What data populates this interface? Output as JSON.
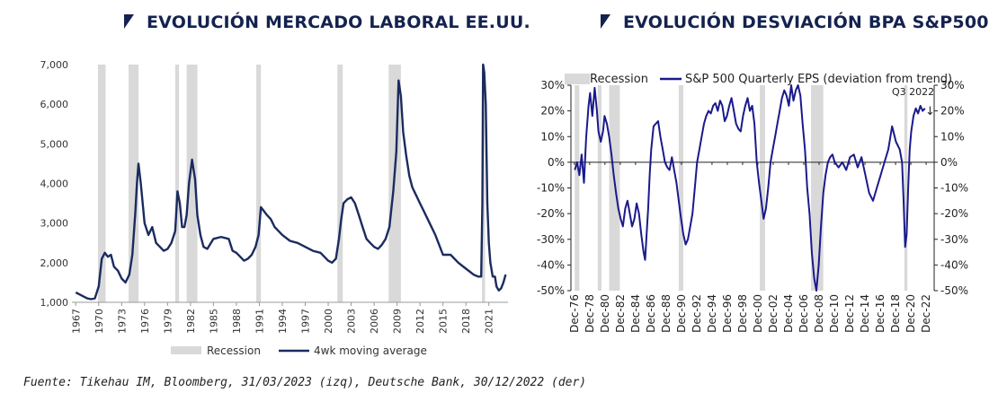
{
  "colors": {
    "line": "#1b2b5e",
    "line_right": "#1a1a8c",
    "recession": "#d9d9d9",
    "title": "#14224f"
  },
  "left": {
    "title": "EVOLUCIÓN MERCADO LABORAL EE.UU.",
    "legend_recession": "Recession",
    "legend_series": "4wk moving average"
  },
  "right": {
    "title": "EVOLUCIÓN DESVIACIÓN BPA S&P500",
    "legend_recession": "Recession",
    "legend_series": "S&P 500 Quarterly EPS (deviation from trend)",
    "annotation": "Q3 2022",
    "annotation_arrow": "↓"
  },
  "source": "Fuente: Tikehau IM, Bloomberg, 31/03/2023 (izq), Deutsche Bank, 30/12/2022 (der)",
  "chart_data": [
    {
      "type": "line",
      "title": "EVOLUCIÓN MERCADO LABORAL EE.UU.",
      "xlabel": "",
      "ylabel": "",
      "xlim": [
        1966.5,
        2023.5
      ],
      "ylim": [
        1000,
        7000
      ],
      "y_ticks": [
        1000,
        2000,
        3000,
        4000,
        5000,
        6000,
        7000
      ],
      "y_tick_labels": [
        "1,000",
        "2,000",
        "3,000",
        "4,000",
        "5,000",
        "6,000",
        "7,000"
      ],
      "x_ticks": [
        1967,
        1970,
        1973,
        1976,
        1979,
        1982,
        1985,
        1988,
        1991,
        1994,
        1997,
        2000,
        2003,
        2006,
        2009,
        2012,
        2015,
        2018,
        2021
      ],
      "recessions": [
        [
          1969.9,
          1970.9
        ],
        [
          1973.9,
          1975.2
        ],
        [
          1980.0,
          1980.5
        ],
        [
          1981.5,
          1982.9
        ],
        [
          1990.6,
          1991.2
        ],
        [
          2001.2,
          2001.9
        ],
        [
          2007.9,
          2009.5
        ],
        [
          2020.1,
          2020.5
        ]
      ],
      "series": [
        {
          "name": "4wk moving average",
          "x": [
            1967.0,
            1967.5,
            1968.0,
            1968.5,
            1969.0,
            1969.5,
            1970.0,
            1970.4,
            1970.8,
            1971.2,
            1971.6,
            1972.0,
            1972.5,
            1973.0,
            1973.5,
            1974.0,
            1974.4,
            1974.8,
            1975.0,
            1975.2,
            1975.5,
            1976.0,
            1976.5,
            1977.0,
            1977.5,
            1978.0,
            1978.5,
            1979.0,
            1979.5,
            1980.0,
            1980.3,
            1980.6,
            1980.9,
            1981.2,
            1981.5,
            1981.8,
            1982.2,
            1982.6,
            1982.9,
            1983.3,
            1983.7,
            1984.2,
            1985.0,
            1986.0,
            1987.0,
            1987.5,
            1988.0,
            1988.5,
            1989.0,
            1989.5,
            1990.0,
            1990.5,
            1990.9,
            1991.2,
            1991.6,
            1992.0,
            1992.5,
            1993.0,
            1994.0,
            1995.0,
            1996.0,
            1997.0,
            1998.0,
            1999.0,
            2000.0,
            2000.5,
            2001.0,
            2001.4,
            2001.7,
            2002.0,
            2002.5,
            2003.0,
            2003.5,
            2004.0,
            2004.5,
            2005.0,
            2005.5,
            2006.0,
            2006.5,
            2007.0,
            2007.5,
            2008.0,
            2008.5,
            2008.9,
            2009.2,
            2009.5,
            2009.8,
            2010.2,
            2010.6,
            2011.0,
            2011.5,
            2012.0,
            2012.5,
            2013.0,
            2014.0,
            2015.0,
            2016.0,
            2017.0,
            2018.0,
            2019.0,
            2019.6,
            2020.0,
            2020.15,
            2020.25,
            2020.4,
            2020.6,
            2020.8,
            2021.0,
            2021.2,
            2021.5,
            2021.8,
            2022.0,
            2022.3,
            2022.6,
            2022.9,
            2023.2
          ],
          "values": [
            1250,
            1200,
            1150,
            1100,
            1080,
            1100,
            1400,
            2100,
            2250,
            2150,
            2200,
            1900,
            1800,
            1600,
            1500,
            1700,
            2200,
            3300,
            4000,
            4500,
            4000,
            3000,
            2700,
            2900,
            2500,
            2400,
            2300,
            2350,
            2500,
            2800,
            3800,
            3500,
            2900,
            2900,
            3200,
            4000,
            4600,
            4100,
            3200,
            2700,
            2400,
            2350,
            2600,
            2650,
            2600,
            2300,
            2250,
            2150,
            2050,
            2100,
            2200,
            2400,
            2700,
            3400,
            3300,
            3200,
            3100,
            2900,
            2700,
            2550,
            2500,
            2400,
            2300,
            2250,
            2050,
            2000,
            2100,
            2600,
            3100,
            3500,
            3600,
            3650,
            3500,
            3200,
            2900,
            2600,
            2500,
            2400,
            2350,
            2450,
            2600,
            2900,
            3800,
            4800,
            6600,
            6200,
            5300,
            4700,
            4200,
            3900,
            3700,
            3500,
            3300,
            3100,
            2700,
            2200,
            2200,
            2000,
            1850,
            1700,
            1650,
            1650,
            3500,
            7000,
            6800,
            6000,
            3500,
            2500,
            2000,
            1650,
            1650,
            1400,
            1300,
            1350,
            1500,
            1700
          ]
        }
      ]
    },
    {
      "type": "line",
      "title": "EVOLUCIÓN DESVIACIÓN BPA S&P500",
      "xlabel": "",
      "ylabel": "",
      "xlim": [
        1976.5,
        2024.0
      ],
      "ylim": [
        -50,
        30
      ],
      "y_ticks": [
        -50,
        -40,
        -30,
        -20,
        -10,
        0,
        10,
        20,
        30
      ],
      "y_tick_labels": [
        "-50%",
        "-40%",
        "-30%",
        "-20%",
        "-10%",
        "0%",
        "10%",
        "20%",
        "30%"
      ],
      "x_ticks": [
        1976,
        1978,
        1980,
        1982,
        1984,
        1986,
        1988,
        1990,
        1992,
        1994,
        1996,
        1998,
        2000,
        2002,
        2004,
        2006,
        2008,
        2010,
        2012,
        2014,
        2016,
        2018,
        2020,
        2022
      ],
      "x_tick_labels": [
        "Dec-76",
        "Dec-78",
        "Dec-80",
        "Dec-82",
        "Dec-84",
        "Dec-86",
        "Dec-88",
        "Dec-90",
        "Dec-92",
        "Dec-94",
        "Dec-96",
        "Dec-98",
        "Dec-00",
        "Dec-02",
        "Dec-04",
        "Dec-06",
        "Dec-08",
        "Dec-10",
        "Dec-12",
        "Dec-14",
        "Dec-16",
        "Dec-18",
        "Dec-20",
        "Dec-22"
      ],
      "recessions": [
        [
          1977.0,
          1977.6
        ],
        [
          1980.0,
          1980.5
        ],
        [
          1981.5,
          1982.9
        ],
        [
          1990.6,
          1991.2
        ],
        [
          2001.2,
          2001.9
        ],
        [
          2007.9,
          2009.5
        ],
        [
          2020.1,
          2020.5
        ]
      ],
      "series": [
        {
          "name": "S&P 500 Quarterly EPS (deviation from trend)",
          "x": [
            1977.0,
            1977.3,
            1977.6,
            1977.9,
            1978.2,
            1978.5,
            1978.8,
            1979.0,
            1979.3,
            1979.6,
            1979.9,
            1980.1,
            1980.4,
            1980.7,
            1980.9,
            1981.2,
            1981.5,
            1981.8,
            1982.1,
            1982.4,
            1982.7,
            1983.0,
            1983.3,
            1983.6,
            1983.9,
            1984.2,
            1984.5,
            1984.8,
            1985.1,
            1985.4,
            1985.7,
            1986.0,
            1986.2,
            1986.4,
            1986.6,
            1986.8,
            1987.0,
            1987.3,
            1987.6,
            1987.9,
            1988.2,
            1988.5,
            1988.8,
            1989.1,
            1989.4,
            1989.7,
            1990.0,
            1990.3,
            1990.6,
            1990.9,
            1991.2,
            1991.5,
            1991.8,
            1992.1,
            1992.4,
            1992.7,
            1993.0,
            1993.3,
            1993.6,
            1993.9,
            1994.2,
            1994.5,
            1994.8,
            1995.1,
            1995.4,
            1995.7,
            1996.0,
            1996.3,
            1996.6,
            1996.9,
            1997.2,
            1997.5,
            1997.8,
            1998.1,
            1998.4,
            1998.7,
            1999.0,
            1999.3,
            1999.6,
            1999.9,
            2000.2,
            2000.5,
            2000.8,
            2001.1,
            2001.4,
            2001.7,
            2002.0,
            2002.3,
            2002.6,
            2002.9,
            2003.2,
            2003.5,
            2003.8,
            2004.1,
            2004.4,
            2004.7,
            2005.0,
            2005.3,
            2005.6,
            2005.9,
            2006.2,
            2006.5,
            2006.8,
            2007.1,
            2007.4,
            2007.7,
            2008.0,
            2008.3,
            2008.6,
            2008.9,
            2009.2,
            2009.5,
            2009.8,
            2010.1,
            2010.4,
            2010.7,
            2011.0,
            2011.5,
            2012.0,
            2012.5,
            2013.0,
            2013.5,
            2014.0,
            2014.5,
            2015.0,
            2015.5,
            2016.0,
            2016.5,
            2017.0,
            2017.5,
            2018.0,
            2018.5,
            2019.0,
            2019.5,
            2019.8,
            2020.0,
            2020.2,
            2020.4,
            2020.6,
            2020.8,
            2021.0,
            2021.3,
            2021.6,
            2021.9,
            2022.2,
            2022.5,
            2022.8
          ],
          "values": [
            -3,
            0,
            -5,
            3,
            -8,
            10,
            22,
            27,
            18,
            29,
            20,
            12,
            8,
            12,
            18,
            15,
            10,
            3,
            -5,
            -12,
            -18,
            -22,
            -25,
            -18,
            -15,
            -20,
            -25,
            -22,
            -16,
            -20,
            -28,
            -35,
            -38,
            -28,
            -18,
            -5,
            5,
            14,
            15,
            16,
            10,
            5,
            0,
            -2,
            -3,
            2,
            -3,
            -8,
            -15,
            -22,
            -28,
            -32,
            -30,
            -25,
            -20,
            -10,
            0,
            5,
            10,
            15,
            18,
            20,
            19,
            22,
            23,
            20,
            24,
            22,
            16,
            18,
            22,
            25,
            20,
            15,
            13,
            12,
            18,
            22,
            25,
            20,
            22,
            15,
            0,
            -8,
            -15,
            -22,
            -18,
            -10,
            0,
            5,
            10,
            15,
            20,
            25,
            28,
            26,
            22,
            30,
            24,
            28,
            30,
            26,
            15,
            5,
            -10,
            -20,
            -35,
            -45,
            -50,
            -40,
            -25,
            -12,
            -5,
            0,
            2,
            3,
            0,
            -2,
            0,
            -3,
            2,
            3,
            -2,
            2,
            -5,
            -12,
            -15,
            -10,
            -5,
            0,
            5,
            14,
            8,
            5,
            0,
            -15,
            -33,
            -28,
            -10,
            5,
            12,
            18,
            21,
            19,
            22,
            20,
            21
          ]
        }
      ]
    }
  ]
}
